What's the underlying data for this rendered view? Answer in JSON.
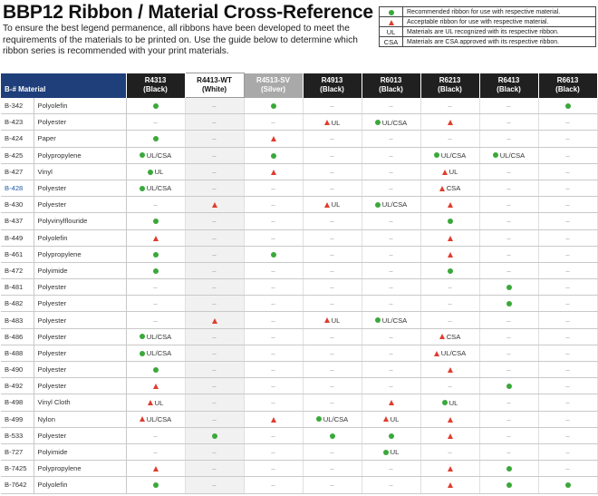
{
  "title": "BBP12 Ribbon / Material Cross-Reference",
  "intro": "To ensure the best legend permanence, all ribbons have been developed to meet the requirements of the materials to be printed on. Use the guide below to determine which ribbon series is recommended with your print materials.",
  "legend": [
    {
      "key": "dot",
      "key_icon": "recommended-dot-icon",
      "text": "Recommended ribbon for use with respective material."
    },
    {
      "key": "tri",
      "key_icon": "acceptable-triangle-icon",
      "text": "Acceptable ribbon for use with respective material."
    },
    {
      "key": "UL",
      "text": "Materials are UL recognized with its respective ribbon."
    },
    {
      "key": "CSA",
      "text": "Materials are CSA approved with its respective ribbon."
    }
  ],
  "colors": {
    "recommended": "#3aa83a",
    "acceptable": "#e03c2e",
    "header_dark": "#202020",
    "header_material": "#1e3f7a",
    "header_silver": "#a9a9a9"
  },
  "table": {
    "material_header": "B-# Material",
    "ribbons": [
      {
        "name": "R4313",
        "color": "(Black)",
        "style": "dark"
      },
      {
        "name": "R4413-WT",
        "color": "(White)",
        "style": "white"
      },
      {
        "name": "R4513-SV",
        "color": "(Silver)",
        "style": "silver"
      },
      {
        "name": "R4913",
        "color": "(Black)",
        "style": "dark"
      },
      {
        "name": "R6013",
        "color": "(Black)",
        "style": "dark"
      },
      {
        "name": "R6213",
        "color": "(Black)",
        "style": "dark"
      },
      {
        "name": "R6413",
        "color": "(Black)",
        "style": "dark"
      },
      {
        "name": "R6613",
        "color": "(Black)",
        "style": "dark"
      }
    ],
    "rows": [
      {
        "b": "B-342",
        "m": "Polyolefin",
        "c": [
          "dot",
          "-",
          "dot",
          "-",
          "-",
          "-",
          "-",
          "dot"
        ]
      },
      {
        "b": "B-423",
        "m": "Polyester",
        "c": [
          "-",
          "-",
          "-",
          "tri UL",
          "dot UL/CSA",
          "tri",
          "-",
          "-"
        ]
      },
      {
        "b": "B-424",
        "m": "Paper",
        "c": [
          "dot",
          "-",
          "tri",
          "-",
          "-",
          "-",
          "-",
          "-"
        ]
      },
      {
        "b": "B-425",
        "m": "Polypropylene",
        "c": [
          "dot UL/CSA",
          "-",
          "dot",
          "-",
          "-",
          "dot UL/CSA",
          "dot UL/CSA",
          "-"
        ]
      },
      {
        "b": "B-427",
        "m": "Vinyl",
        "c": [
          "dot UL",
          "-",
          "tri",
          "-",
          "-",
          "tri UL",
          "-",
          "-"
        ]
      },
      {
        "b": "B-428",
        "m": "Polyester",
        "blue": true,
        "c": [
          "dot UL/CSA",
          "-",
          "-",
          "-",
          "-",
          "tri CSA",
          "-",
          "-"
        ]
      },
      {
        "b": "B-430",
        "m": "Polyester",
        "c": [
          "-",
          "tri",
          "-",
          "tri UL",
          "dot UL/CSA",
          "tri",
          "-",
          "-"
        ]
      },
      {
        "b": "B-437",
        "m": "Polyvinylflouride",
        "c": [
          "dot",
          "-",
          "-",
          "-",
          "-",
          "dot",
          "-",
          "-"
        ]
      },
      {
        "b": "B-449",
        "m": "Polyolefin",
        "c": [
          "tri",
          "-",
          "-",
          "-",
          "-",
          "tri",
          "-",
          "-"
        ]
      },
      {
        "b": "B-461",
        "m": "Polypropylene",
        "c": [
          "dot",
          "-",
          "dot",
          "-",
          "-",
          "tri",
          "-",
          "-"
        ]
      },
      {
        "b": "B-472",
        "m": "Polyimide",
        "c": [
          "dot",
          "-",
          "-",
          "-",
          "-",
          "dot",
          "-",
          "-"
        ]
      },
      {
        "b": "B-481",
        "m": "Polyester",
        "c": [
          "-",
          "-",
          "-",
          "-",
          "-",
          "-",
          "dot",
          "-"
        ]
      },
      {
        "b": "B-482",
        "m": "Polyester",
        "c": [
          "-",
          "-",
          "-",
          "-",
          "-",
          "-",
          "dot",
          "-"
        ]
      },
      {
        "b": "B-483",
        "m": "Polyester",
        "c": [
          "-",
          "tri",
          "-",
          "tri UL",
          "dot UL/CSA",
          "-",
          "-",
          "-"
        ]
      },
      {
        "b": "B-486",
        "m": "Polyester",
        "c": [
          "dot UL/CSA",
          "-",
          "-",
          "-",
          "-",
          "tri CSA",
          "-",
          "-"
        ]
      },
      {
        "b": "B-488",
        "m": "Polyester",
        "c": [
          "dot UL/CSA",
          "-",
          "-",
          "-",
          "-",
          "tri UL/CSA",
          "-",
          "-"
        ]
      },
      {
        "b": "B-490",
        "m": "Polyester",
        "c": [
          "dot",
          "-",
          "-",
          "-",
          "-",
          "tri",
          "-",
          "-"
        ]
      },
      {
        "b": "B-492",
        "m": "Polyester",
        "c": [
          "tri",
          "-",
          "-",
          "-",
          "-",
          "-",
          "dot",
          "-"
        ]
      },
      {
        "b": "B-498",
        "m": "Vinyl Cloth",
        "c": [
          "tri UL",
          "-",
          "-",
          "-",
          "tri",
          "dot UL",
          "-",
          "-"
        ]
      },
      {
        "b": "B-499",
        "m": "Nylon",
        "c": [
          "tri UL/CSA",
          "-",
          "tri",
          "dot UL/CSA",
          "tri UL",
          "tri",
          "-",
          "-"
        ]
      },
      {
        "b": "B-533",
        "m": "Polyester",
        "c": [
          "-",
          "dot",
          "-",
          "dot",
          "dot",
          "tri",
          "-",
          "-"
        ]
      },
      {
        "b": "B-727",
        "m": "Polyimide",
        "c": [
          "-",
          "-",
          "-",
          "-",
          "dot UL",
          "-",
          "-",
          "-"
        ]
      },
      {
        "b": "B-7425",
        "m": "Polypropylene",
        "c": [
          "tri",
          "-",
          "-",
          "-",
          "-",
          "tri",
          "dot",
          "-"
        ]
      },
      {
        "b": "B-7642",
        "m": "Polyolefin",
        "c": [
          "dot",
          "-",
          "-",
          "-",
          "-",
          "tri",
          "dot",
          "dot"
        ]
      }
    ]
  }
}
